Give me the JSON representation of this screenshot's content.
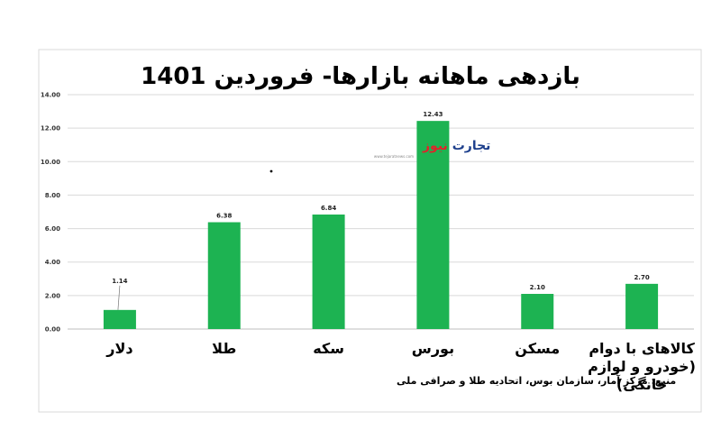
{
  "chart_data": {
    "type": "bar",
    "title": "بازدهی ماهانه بازارها- فروردین 1401",
    "categories": [
      "دلار",
      "طلا",
      "سکه",
      "بورس",
      "مسکن",
      "کالاهای با دوام (خودرو و لوازم خانگی)"
    ],
    "category_lines": [
      [
        "دلار"
      ],
      [
        "طلا"
      ],
      [
        "سکه"
      ],
      [
        "بورس"
      ],
      [
        "مسکن"
      ],
      [
        "کالاهای با دوام",
        "(خودرو و لوازم",
        "خانگی)"
      ]
    ],
    "values": [
      1.14,
      6.38,
      6.84,
      12.43,
      2.1,
      2.7
    ],
    "value_labels": [
      "1.14",
      "6.38",
      "6.84",
      "12.43",
      "2.10",
      "2.70"
    ],
    "ylim": [
      0,
      14
    ],
    "yticks": [
      "0.00",
      "2.00",
      "4.00",
      "6.00",
      "8.00",
      "10.00",
      "12.00",
      "14.00"
    ],
    "grid": true,
    "legend": "none",
    "bar_color": "#1db352",
    "source_note": "منبع: مرکز آمار، سازمان بوس، اتحادیه طلا و صرافی ملی"
  },
  "watermark": {
    "text_a": "تجارت",
    "text_b": "نیوز",
    "url": "www.tejaratnews.com",
    "color_a": "#1d3f8c",
    "color_b": "#e2232a"
  }
}
